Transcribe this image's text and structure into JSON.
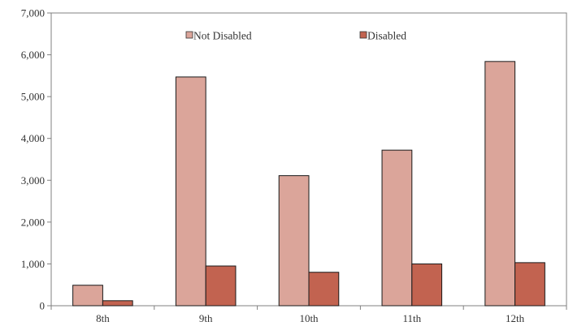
{
  "chart_data": {
    "type": "bar",
    "categories": [
      "8th",
      "9th",
      "10th",
      "11th",
      "12th"
    ],
    "series": [
      {
        "name": "Not Disabled",
        "color": "#dba59a",
        "values": [
          490,
          5470,
          3110,
          3720,
          5840
        ]
      },
      {
        "name": "Disabled",
        "color": "#c26350",
        "values": [
          120,
          950,
          800,
          1000,
          1030
        ]
      }
    ],
    "ylim": [
      0,
      7000
    ],
    "yticks": [
      "0",
      "1,000",
      "2,000",
      "3,000",
      "4,000",
      "5,000",
      "6,000",
      "7,000"
    ],
    "grid": false,
    "legend_position": "top-center",
    "title": "",
    "xlabel": "",
    "ylabel": ""
  }
}
